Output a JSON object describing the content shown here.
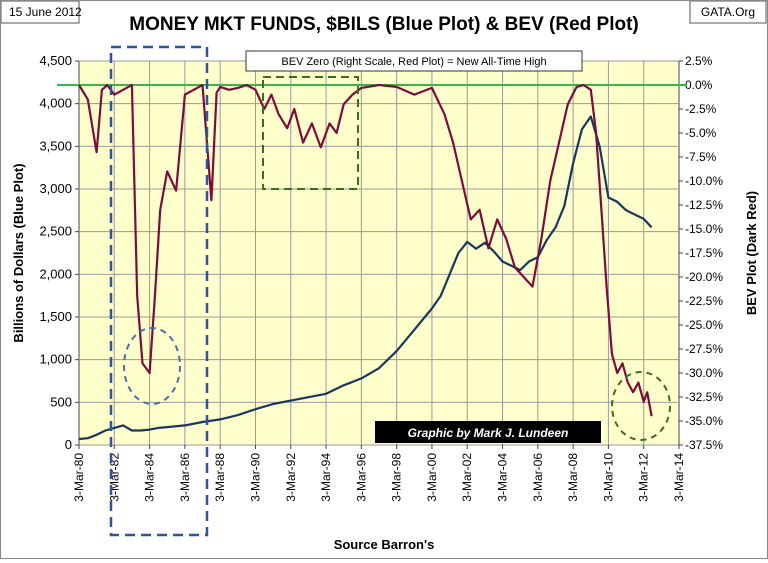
{
  "header": {
    "date": "15 June 2012",
    "title": "MONEY MKT FUNDS, $BILS (Blue Plot)  & BEV (Red Plot)",
    "source_tag": "GATA.Org"
  },
  "annotation": {
    "bev_zero_note": "BEV Zero (Right Scale, Red Plot) = New All-Time High",
    "credit": "Graphic by Mark J. Lundeen"
  },
  "colors": {
    "plot_background": "#ffffcc",
    "blue_series": "#17375e",
    "red_series": "#7b0c3c",
    "zero_line": "#3bb54a",
    "blue_circle": "#4a6fa5",
    "green_box": "#3a6e1f"
  },
  "chart_data": {
    "type": "line",
    "title": "MONEY MKT FUNDS, $BILS (Blue Plot)  & BEV (Red Plot)",
    "xlabel": "Source Barron's",
    "ylabel": "Billions of Dollars (Blue Plot)",
    "y2label": "BEV Plot (Dark Red)",
    "xlim": [
      1980,
      2014
    ],
    "ylim": [
      0,
      4500
    ],
    "y2lim": [
      -37.5,
      2.5
    ],
    "x_ticks": [
      1980,
      1982,
      1984,
      1986,
      1988,
      1990,
      1992,
      1994,
      1996,
      1998,
      2000,
      2002,
      2004,
      2006,
      2008,
      2010,
      2012,
      2014
    ],
    "x_tick_labels": [
      "3-Mar-80",
      "3-Mar-82",
      "3-Mar-84",
      "3-Mar-86",
      "3-Mar-88",
      "3-Mar-90",
      "3-Mar-92",
      "3-Mar-94",
      "3-Mar-96",
      "3-Mar-98",
      "3-Mar-00",
      "3-Mar-02",
      "3-Mar-04",
      "3-Mar-06",
      "3-Mar-08",
      "3-Mar-10",
      "3-Mar-12",
      "3-Mar-14"
    ],
    "y_ticks": [
      0,
      500,
      1000,
      1500,
      2000,
      2500,
      3000,
      3500,
      4000,
      4500
    ],
    "y_tick_labels": [
      "0",
      "500",
      "1,000",
      "1,500",
      "2,000",
      "2,500",
      "3,000",
      "3,500",
      "4,000",
      "4,500"
    ],
    "y2_ticks": [
      2.5,
      0,
      -2.5,
      -5,
      -7.5,
      -10,
      -12.5,
      -15,
      -17.5,
      -20,
      -22.5,
      -25,
      -27.5,
      -30,
      -32.5,
      -35,
      -37.5
    ],
    "y2_tick_labels": [
      "2.5%",
      "0.0%",
      "-2.5%",
      "-5.0%",
      "-7.5%",
      "-10.0%",
      "-12.5%",
      "-15.0%",
      "-17.5%",
      "-20.0%",
      "-22.5%",
      "-25.0%",
      "-27.5%",
      "-30.0%",
      "-32.5%",
      "-35.0%",
      "-37.5%"
    ],
    "grid": true,
    "series": [
      {
        "name": "Money Market Funds ($Bils, Blue Plot)",
        "axis": "left",
        "x": [
          1980.0,
          1980.5,
          1981.0,
          1981.5,
          1982.0,
          1982.5,
          1983.0,
          1983.5,
          1984.0,
          1984.5,
          1985.0,
          1986.0,
          1987.0,
          1988.0,
          1989.0,
          1990.0,
          1991.0,
          1992.0,
          1993.0,
          1994.0,
          1995.0,
          1996.0,
          1997.0,
          1998.0,
          1999.0,
          2000.0,
          2000.5,
          2001.0,
          2001.5,
          2002.0,
          2002.5,
          2003.0,
          2003.5,
          2004.0,
          2004.5,
          2005.0,
          2005.5,
          2006.0,
          2006.5,
          2007.0,
          2007.5,
          2008.0,
          2008.5,
          2009.0,
          2009.5,
          2010.0,
          2010.5,
          2011.0,
          2011.5,
          2012.0,
          2012.45
        ],
        "values": [
          70,
          80,
          120,
          170,
          200,
          230,
          170,
          170,
          180,
          200,
          210,
          230,
          270,
          300,
          350,
          420,
          480,
          520,
          560,
          600,
          700,
          780,
          900,
          1100,
          1350,
          1600,
          1750,
          2000,
          2250,
          2380,
          2300,
          2370,
          2270,
          2150,
          2100,
          2050,
          2150,
          2200,
          2400,
          2550,
          2800,
          3300,
          3700,
          3850,
          3500,
          2900,
          2850,
          2750,
          2700,
          2650,
          2550
        ]
      },
      {
        "name": "BEV (Dark Red, Right Scale)",
        "axis": "right",
        "x": [
          1980.0,
          1980.5,
          1981.0,
          1981.3,
          1981.6,
          1982.0,
          1982.5,
          1983.0,
          1983.3,
          1983.6,
          1984.0,
          1984.3,
          1984.6,
          1985.0,
          1985.5,
          1986.0,
          1986.5,
          1987.0,
          1987.5,
          1987.8,
          1988.0,
          1988.5,
          1989.0,
          1989.5,
          1990.0,
          1990.5,
          1990.9,
          1991.3,
          1991.8,
          1992.2,
          1992.7,
          1993.2,
          1993.7,
          1994.2,
          1994.6,
          1995.0,
          1995.5,
          1996.0,
          1997.0,
          1998.0,
          1999.0,
          2000.0,
          2000.7,
          2001.2,
          2001.7,
          2002.2,
          2002.7,
          2003.2,
          2003.7,
          2004.2,
          2004.7,
          2005.2,
          2005.7,
          2006.2,
          2006.7,
          2007.2,
          2007.7,
          2008.2,
          2008.6,
          2009.0,
          2009.3,
          2009.6,
          2009.9,
          2010.2,
          2010.5,
          2010.8,
          2011.1,
          2011.4,
          2011.7,
          2012.0,
          2012.2,
          2012.45
        ],
        "values": [
          0,
          -1.5,
          -7,
          -0.5,
          0,
          -1,
          -0.5,
          0,
          -22,
          -29,
          -30,
          -22,
          -13,
          -9,
          -11,
          -1,
          -0.5,
          0,
          -12,
          -0.8,
          -0.2,
          -0.5,
          -0.3,
          0,
          -0.5,
          -2.5,
          -1,
          -3,
          -4.5,
          -2.5,
          -6,
          -4,
          -6.5,
          -4,
          -5,
          -2,
          -1,
          -0.3,
          0,
          -0.2,
          -1,
          -0.3,
          -3,
          -6,
          -10,
          -14,
          -13,
          -17,
          -14,
          -16,
          -19,
          -20,
          -21,
          -16,
          -10,
          -6,
          -2,
          -0.2,
          0,
          -0.5,
          -5,
          -13,
          -21,
          -28,
          -30,
          -29,
          -31,
          -32,
          -31,
          -33,
          -32,
          -34.5
        ]
      }
    ],
    "annotations": [
      "BEV Zero (Right Scale, Red Plot) = New All-Time High",
      "Graphic by Mark J. Lundeen"
    ]
  }
}
